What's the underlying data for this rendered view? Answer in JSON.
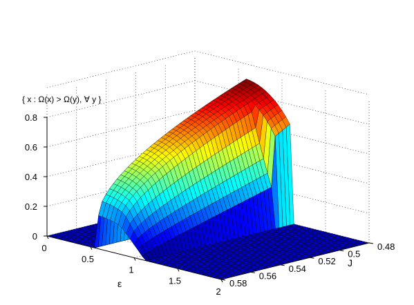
{
  "chart_data": {
    "type": "surface",
    "title": "",
    "zlabel": "{ x : Ω(x) > Ω(y), ∀ y }",
    "xlabel": "ε",
    "ylabel": "J",
    "x_ticks": [
      "0",
      "0.5",
      "1",
      "1.5",
      "2"
    ],
    "y_ticks": [
      "0.48",
      "0.5",
      "0.52",
      "0.54",
      "0.56",
      "0.58"
    ],
    "z_ticks": [
      "0",
      "0.2",
      "0.4",
      "0.6",
      "0.8"
    ],
    "xlim": [
      0,
      2
    ],
    "ylim": [
      0.48,
      0.58
    ],
    "zlim": [
      0,
      0.8
    ],
    "grid": true,
    "colormap": "jet",
    "surface_description_values": {
      "flat_region_value": 0,
      "max_value": 0.9,
      "front_edge_value": 0.2
    }
  }
}
